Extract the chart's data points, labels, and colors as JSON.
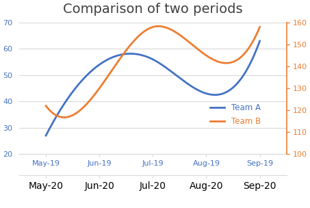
{
  "title": "Comparison of two periods",
  "x_labels_top": [
    "May-19",
    "Jun-19",
    "Jul-19",
    "Aug-19",
    "Sep-19"
  ],
  "x_labels_bottom": [
    "May-20",
    "Jun-20",
    "Jul-20",
    "Aug-20",
    "Sep-20"
  ],
  "team_a": [
    27,
    54,
    56,
    43,
    63
  ],
  "team_b": [
    122,
    130,
    158,
    145,
    158
  ],
  "color_a": "#4472C4",
  "color_b": "#ED7D31",
  "left_ylim": [
    20,
    70
  ],
  "right_ylim": [
    100,
    160
  ],
  "left_yticks": [
    20,
    30,
    40,
    50,
    60,
    70
  ],
  "right_yticks": [
    100,
    110,
    120,
    130,
    140,
    150,
    160
  ],
  "background_color": "#ffffff",
  "plot_bg_color": "#ffffff",
  "title_color": "#404040",
  "title_fontsize": 14,
  "legend_labels": [
    "Team A",
    "Team B"
  ],
  "line_width": 2.0,
  "grid_color": "#d9d9d9",
  "spine_color": "#d9d9d9"
}
